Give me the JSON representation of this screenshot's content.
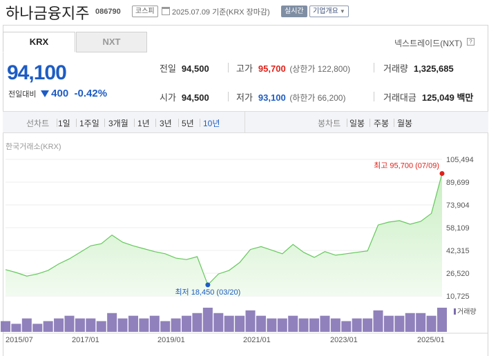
{
  "header": {
    "name": "하나금융지주",
    "code": "086790",
    "market_badge": "코스피",
    "date_text": "2025.07.09 기준(KRX 장마감)",
    "realtime_badge": "실시간",
    "overview_dropdown": "기업개요"
  },
  "tabs": {
    "krx": "KRX",
    "nxt": "NXT"
  },
  "nxt_link": "넥스트레이드(NXT)",
  "help_symbol": "?",
  "price": {
    "current": "94,100",
    "change_label": "전일대비",
    "change": "400",
    "change_pct": "-0.42%"
  },
  "stats": {
    "prev_close_label": "전일",
    "prev_close": "94,500",
    "high_label": "고가",
    "high": "95,700",
    "upper_limit": "(상한가 122,800)",
    "volume_label": "거래량",
    "volume": "1,325,685",
    "open_label": "시가",
    "open": "94,500",
    "low_label": "저가",
    "low": "93,100",
    "lower_limit": "(하한가 66,200)",
    "amount_label": "거래대금",
    "amount": "125,049 백만"
  },
  "periods": {
    "line_label": "선차트",
    "items": [
      "1일",
      "1주일",
      "3개월",
      "1년",
      "3년",
      "5년",
      "10년"
    ],
    "active": "10년",
    "candle_label": "봉차트",
    "candle_items": [
      "일봉",
      "주봉",
      "월봉"
    ]
  },
  "chart_source": "한국거래소(KRX)",
  "colors": {
    "up": "#e0211a",
    "down": "#1d5cc4",
    "line": "#63c85a",
    "fill_top": "#c9eec3",
    "volume": "#7c6bb0"
  },
  "chart_data": {
    "type": "area",
    "y_ticks": [
      "105,494",
      "89,699",
      "73,904",
      "58,109",
      "42,315",
      "26,520",
      "10,725"
    ],
    "ylim": [
      10725,
      105494
    ],
    "x_ticks": [
      "2015/07",
      "2017/01",
      "2019/01",
      "2021/01",
      "2023/01",
      "2025/01"
    ],
    "max_annotation": "최고 95,700 (07/09)",
    "min_annotation": "최저 18,450 (03/20)",
    "volume_label": "거래량",
    "x": [
      "2015/07",
      "2015/10",
      "2016/01",
      "2016/04",
      "2016/07",
      "2016/10",
      "2017/01",
      "2017/04",
      "2017/07",
      "2017/10",
      "2018/01",
      "2018/04",
      "2018/07",
      "2018/10",
      "2019/01",
      "2019/04",
      "2019/07",
      "2019/10",
      "2020/01",
      "2020/03",
      "2020/06",
      "2020/09",
      "2020/12",
      "2021/03",
      "2021/06",
      "2021/09",
      "2021/12",
      "2022/03",
      "2022/06",
      "2022/09",
      "2022/12",
      "2023/03",
      "2023/06",
      "2023/09",
      "2023/12",
      "2024/03",
      "2024/06",
      "2024/09",
      "2024/12",
      "2025/03",
      "2025/05",
      "2025/07"
    ],
    "values": [
      29000,
      27000,
      24500,
      26000,
      28500,
      33000,
      36500,
      41000,
      45500,
      47000,
      53000,
      48000,
      45500,
      43500,
      41500,
      40000,
      37000,
      36000,
      38000,
      18450,
      26000,
      28500,
      34000,
      43000,
      45000,
      42500,
      40000,
      46500,
      41000,
      37500,
      41500,
      39000,
      40000,
      41000,
      42000,
      60000,
      62000,
      63000,
      60500,
      62500,
      68000,
      95700
    ],
    "volume_values": [
      4,
      3,
      5,
      3,
      4,
      5,
      6,
      5,
      5,
      4,
      7,
      5,
      6,
      5,
      6,
      4,
      5,
      6,
      7,
      9,
      7,
      6,
      6,
      8,
      6,
      5,
      5,
      6,
      5,
      5,
      6,
      5,
      4,
      5,
      5,
      8,
      6,
      6,
      7,
      7,
      6,
      9
    ]
  }
}
